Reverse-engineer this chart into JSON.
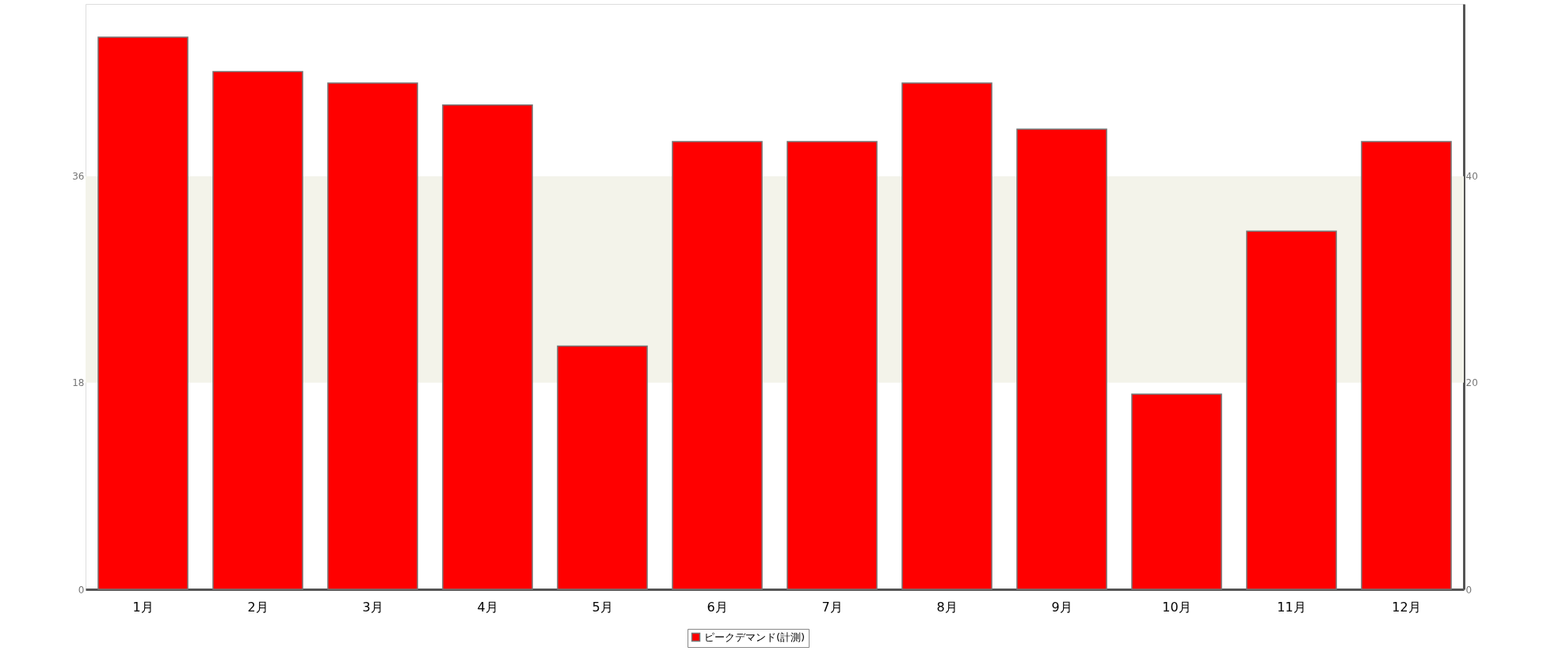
{
  "chart_data": {
    "type": "bar",
    "categories": [
      "1月",
      "2月",
      "3月",
      "4月",
      "5月",
      "6月",
      "7月",
      "8月",
      "9月",
      "10月",
      "11月",
      "12月"
    ],
    "series": [
      {
        "name": "ピークデマンド(計測)",
        "color": "#ff0000",
        "values": [
          48.1,
          45.1,
          44.1,
          42.2,
          21.2,
          39.0,
          39.0,
          44.1,
          40.1,
          17.0,
          31.2,
          39.0
        ]
      }
    ],
    "ylim": [
      0,
      51
    ],
    "yticks": [
      0,
      18,
      36
    ],
    "y2lim": [
      0,
      56.7
    ],
    "y2ticks": [
      0,
      20,
      40
    ],
    "bands": [
      {
        "axis": "y",
        "from": 18,
        "to": 36,
        "color": "#f3f3ea"
      }
    ],
    "legend": "bottom",
    "grid": false
  }
}
